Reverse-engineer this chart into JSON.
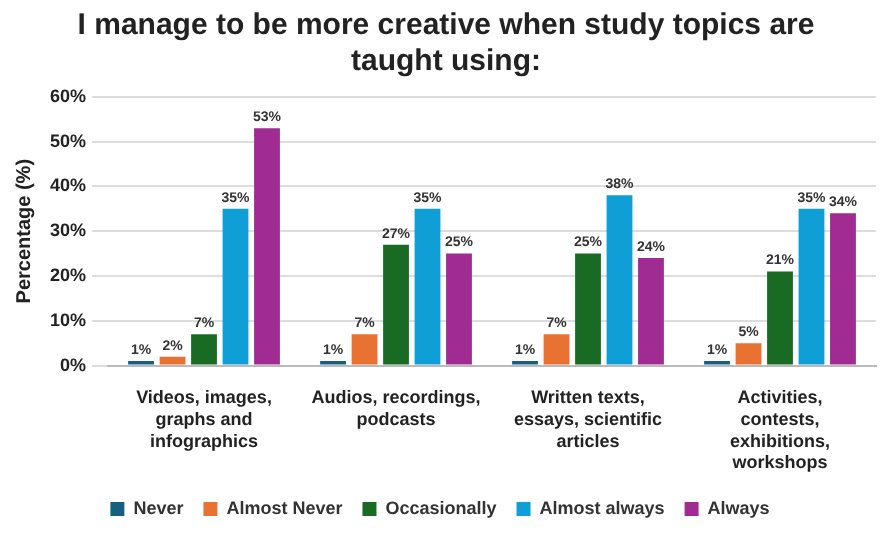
{
  "chart_data": {
    "type": "bar",
    "title": "I manage to be more creative when study topics are taught using:",
    "ylabel": "Percentage (%)",
    "categories": [
      "Videos, images, graphs and infographics",
      "Audios, recordings, podcasts",
      "Written texts, essays, scientific articles",
      "Activities, contests, exhibitions, workshops"
    ],
    "series": [
      {
        "name": "Never",
        "color": "#156082",
        "values": [
          1,
          1,
          1,
          1
        ],
        "value_labels": [
          "1%",
          "1%",
          "1%",
          "1%"
        ]
      },
      {
        "name": "Almost Never",
        "color": "#e97132",
        "values": [
          2,
          7,
          7,
          5
        ],
        "value_labels": [
          "2%",
          "7%",
          "7%",
          "5%"
        ]
      },
      {
        "name": "Occasionally",
        "color": "#196b24",
        "values": [
          7,
          27,
          25,
          21
        ],
        "value_labels": [
          "7%",
          "27%",
          "25%",
          "21%"
        ]
      },
      {
        "name": "Almost always",
        "color": "#0f9ed5",
        "values": [
          35,
          35,
          38,
          35
        ],
        "value_labels": [
          "35%",
          "35%",
          "38%",
          "35%"
        ]
      },
      {
        "name": "Always",
        "color": "#a02b93",
        "values": [
          53,
          25,
          24,
          34
        ],
        "value_labels": [
          "53%",
          "25%",
          "24%",
          "34%"
        ]
      }
    ],
    "ylim": [
      0,
      60
    ],
    "yticks": [
      {
        "value": 0,
        "label": "0%"
      },
      {
        "value": 10,
        "label": "10%"
      },
      {
        "value": 20,
        "label": "20%"
      },
      {
        "value": 30,
        "label": "30%"
      },
      {
        "value": 40,
        "label": "40%"
      },
      {
        "value": 50,
        "label": "50%"
      },
      {
        "value": 60,
        "label": "60%"
      }
    ],
    "grid": "y",
    "legend": "bottom"
  }
}
